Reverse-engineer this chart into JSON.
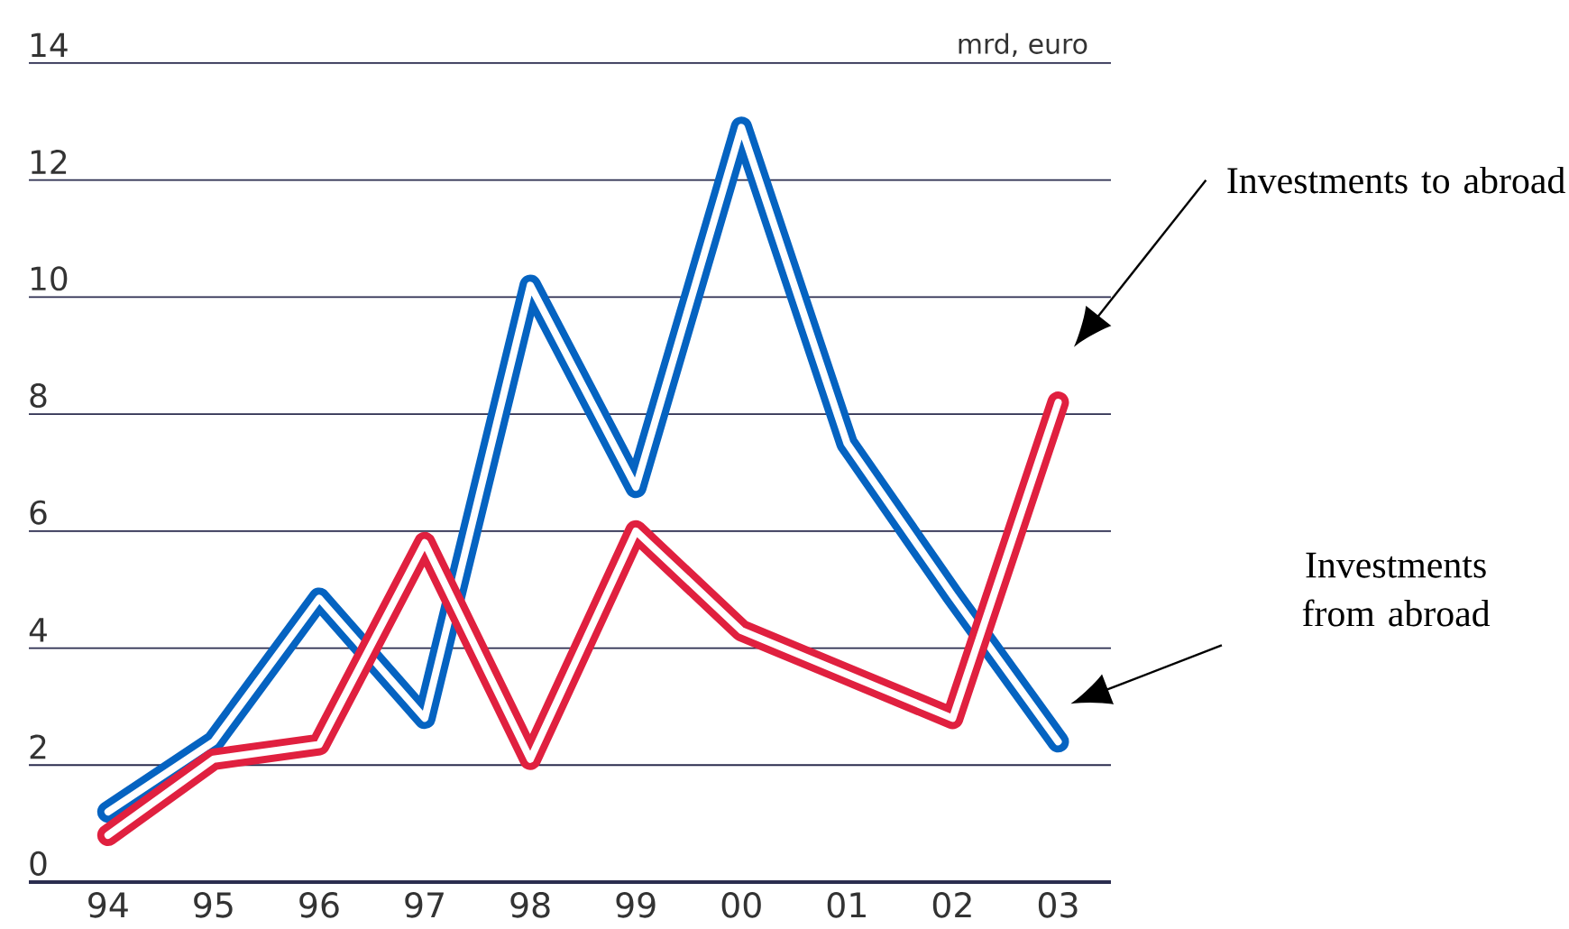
{
  "chart_data": {
    "type": "line",
    "ylabel": "mrd, euro",
    "categories": [
      "94",
      "95",
      "96",
      "97",
      "98",
      "99",
      "00",
      "01",
      "02",
      "03"
    ],
    "series": [
      {
        "name": "Investments from abroad",
        "color": "#0563c1",
        "values": [
          1.2,
          2.4,
          4.85,
          2.8,
          10.2,
          6.75,
          12.9,
          7.5,
          4.9,
          2.4
        ]
      },
      {
        "name": "Investments to abroad",
        "color": "#e0203f",
        "values": [
          0.8,
          2.1,
          2.35,
          5.8,
          2.1,
          6.0,
          4.3,
          3.55,
          2.8,
          8.2
        ]
      }
    ],
    "ylim": [
      0,
      14
    ],
    "yticks": [
      0,
      2,
      4,
      6,
      8,
      10,
      12,
      14
    ],
    "grid": "y",
    "legend": false,
    "marker": "none",
    "line_style": "solid"
  }
}
